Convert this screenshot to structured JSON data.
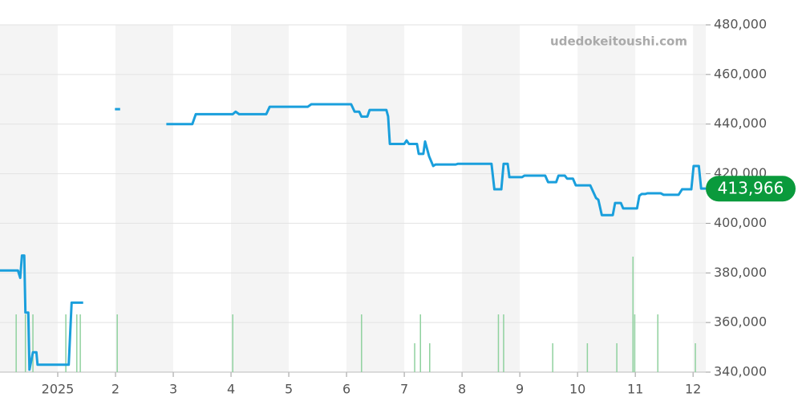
{
  "chart_data": {
    "type": "line",
    "watermark": "udedokeitoushi.com",
    "xlim": [
      0,
      12.22
    ],
    "xticks": [
      {
        "value": 1,
        "label": "2025"
      },
      2,
      3,
      4,
      5,
      6,
      7,
      8,
      9,
      10,
      11,
      12
    ],
    "ylim": [
      340000,
      480000
    ],
    "yticks": [
      {
        "value": 340000,
        "label": "340,000"
      },
      {
        "value": 360000,
        "label": "360,000"
      },
      {
        "value": 380000,
        "label": "380,000"
      },
      {
        "value": 400000,
        "label": "400,000"
      },
      {
        "value": 420000,
        "label": "420,000"
      },
      {
        "value": 440000,
        "label": "440,000"
      },
      {
        "value": 460000,
        "label": "460,000"
      },
      {
        "value": 480000,
        "label": "480,000"
      }
    ],
    "grid": true,
    "band_color": "#f4f4f4",
    "series": [
      {
        "color": "#1a9fdc",
        "x": [
          0,
          0.31,
          0.35,
          0.38,
          0.42,
          0.44,
          0.49,
          0.51,
          0.57,
          0.63,
          0.65,
          1.19,
          1.24,
          1.44,
          1.7,
          1.99,
          2.08,
          2.5,
          2.88,
          3.33,
          3.39,
          4.03,
          4.08,
          4.14,
          4.61,
          4.67,
          5.33,
          5.39,
          6.08,
          6.14,
          6.22,
          6.26,
          6.36,
          6.4,
          6.69,
          6.72,
          6.75,
          7.0,
          7.04,
          7.08,
          7.22,
          7.25,
          7.33,
          7.36,
          7.43,
          7.5,
          7.54,
          7.89,
          7.93,
          8.51,
          8.56,
          8.68,
          8.72,
          8.79,
          8.82,
          9.04,
          9.08,
          9.44,
          9.49,
          9.63,
          9.67,
          9.78,
          9.82,
          9.92,
          9.97,
          10.22,
          10.32,
          10.36,
          10.42,
          10.61,
          10.65,
          10.75,
          10.79,
          11.03,
          11.07,
          11.11,
          11.17,
          11.21,
          11.44,
          11.49,
          11.75,
          11.81,
          11.97,
          12.01,
          12.1,
          12.14,
          12.22
        ],
        "values": [
          381000,
          381000,
          378000,
          387000,
          387000,
          364000,
          364000,
          341000,
          348000,
          348000,
          343000,
          343000,
          368000,
          368000,
          null,
          446000,
          446000,
          null,
          440000,
          440000,
          444000,
          444000,
          445000,
          444000,
          444000,
          447000,
          447000,
          448000,
          448000,
          445000,
          445000,
          443000,
          443000,
          445700,
          445700,
          443100,
          432000,
          432000,
          433400,
          432000,
          432000,
          428000,
          428000,
          433000,
          427000,
          423100,
          423700,
          423700,
          424000,
          424000,
          413700,
          413700,
          424000,
          424000,
          418600,
          418600,
          419200,
          419200,
          416600,
          416600,
          419200,
          419200,
          418000,
          418000,
          415300,
          415300,
          410200,
          409500,
          403300,
          403300,
          408200,
          408200,
          406000,
          406000,
          411100,
          411800,
          411800,
          412100,
          412100,
          411500,
          411500,
          413700,
          413700,
          423100,
          423100,
          414000,
          414000
        ]
      }
    ],
    "current": {
      "value": 413966,
      "label": "413,966",
      "color": "#0a9a3c"
    },
    "volume": {
      "color": "#8fd19e",
      "x": [
        0.28,
        0.44,
        0.57,
        1.14,
        1.33,
        1.39,
        2.03,
        4.03,
        6.26,
        7.18,
        7.28,
        7.44,
        8.63,
        8.72,
        9.57,
        10.17,
        10.68,
        10.96,
        10.99,
        11.39,
        12.04
      ],
      "values": [
        2,
        2,
        2,
        2,
        2,
        2,
        2,
        2,
        2,
        1,
        2,
        1,
        2,
        2,
        1,
        1,
        1,
        4,
        2,
        2,
        1
      ]
    }
  }
}
